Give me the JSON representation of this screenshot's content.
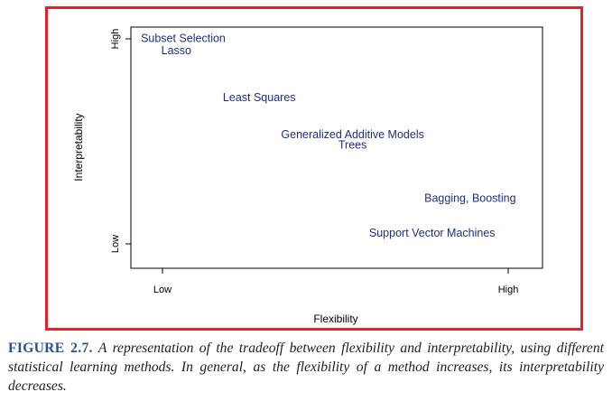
{
  "figure": {
    "label": "FIGURE 2.7.",
    "caption": "A representation of the tradeoff between flexibility and interpretability, using different statistical learning methods. In general, as the flexibility of a method increases, its interpretability decreases."
  },
  "colors": {
    "frame": "#e0242c",
    "method_text": "#1f2d80",
    "axis": "#000000",
    "caption_label": "#2a4f8f"
  },
  "chart_data": {
    "type": "scatter",
    "xlabel": "Flexibility",
    "ylabel": "Interpretability",
    "xlim": [
      0,
      1
    ],
    "ylim": [
      0,
      1
    ],
    "x_ticks": [
      {
        "value": 0,
        "label": "Low"
      },
      {
        "value": 1,
        "label": "High"
      }
    ],
    "y_ticks": [
      {
        "value": 0,
        "label": "Low"
      },
      {
        "value": 1,
        "label": "High"
      }
    ],
    "points": [
      {
        "label": "Subset Selection",
        "x": 0.06,
        "y": 1.0
      },
      {
        "label": "Lasso",
        "x": 0.04,
        "y": 0.94
      },
      {
        "label": "Least Squares",
        "x": 0.28,
        "y": 0.71
      },
      {
        "label": "Generalized Additive Models",
        "x": 0.55,
        "y": 0.53
      },
      {
        "label": "Trees",
        "x": 0.55,
        "y": 0.48
      },
      {
        "label": "Bagging, Boosting",
        "x": 0.89,
        "y": 0.22
      },
      {
        "label": "Support Vector Machines",
        "x": 0.78,
        "y": 0.05
      }
    ],
    "grid": false,
    "legend": "none"
  }
}
